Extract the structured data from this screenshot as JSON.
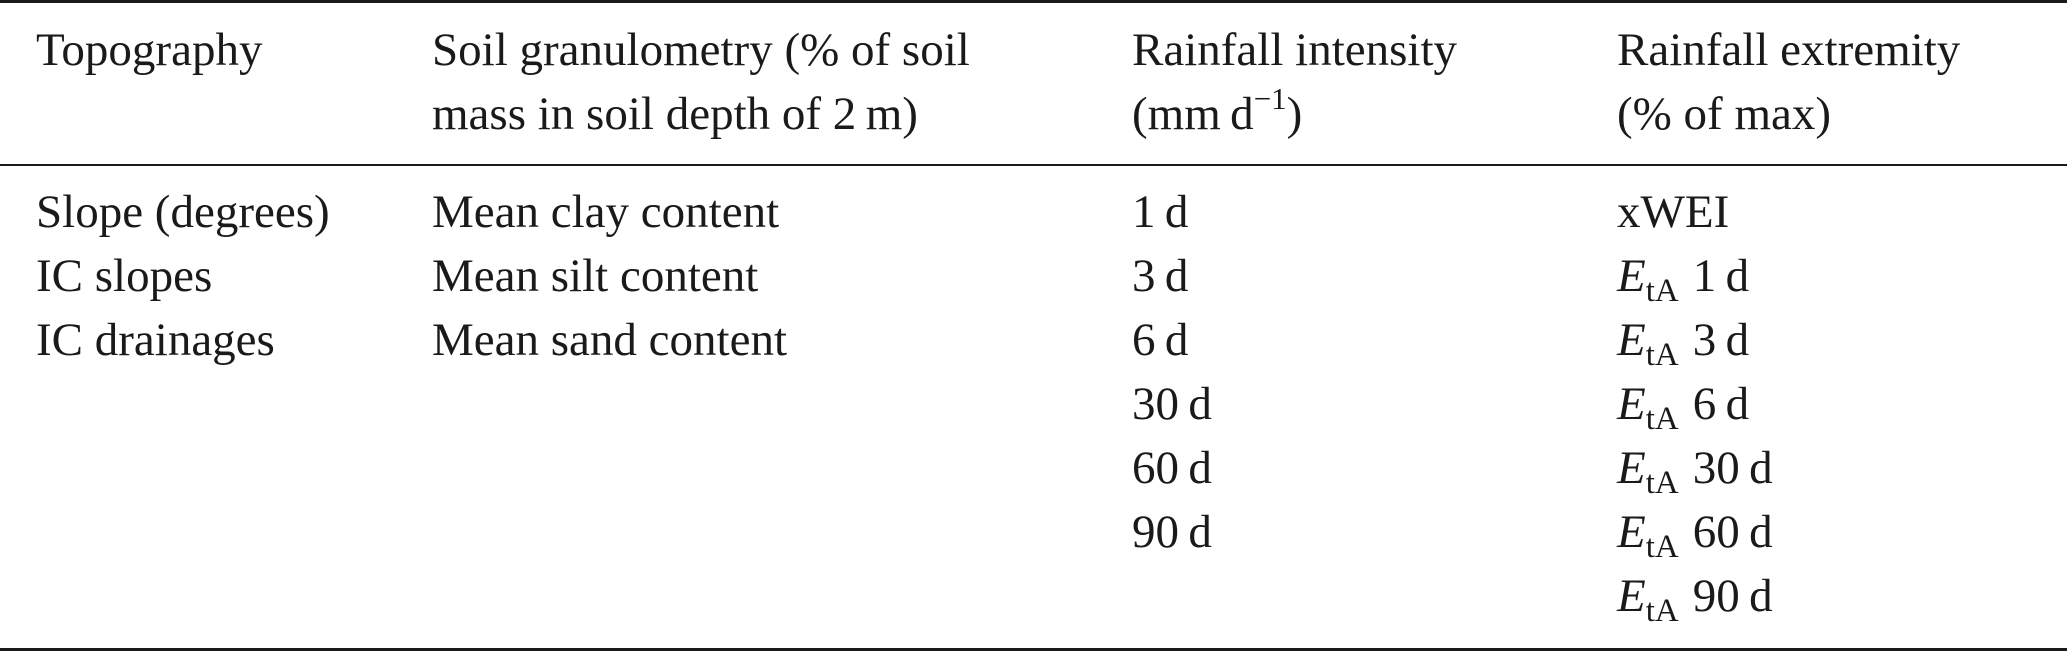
{
  "table": {
    "columns": [
      {
        "header_lines": [
          "Topography"
        ],
        "rows": [
          "Slope (degrees)",
          "IC slopes",
          "IC drainages"
        ]
      },
      {
        "header_lines": [
          "Soil granulometry (% of soil",
          "mass in soil depth of 2 m)"
        ],
        "rows": [
          "Mean clay content",
          "Mean silt content",
          "Mean sand content"
        ]
      },
      {
        "header_line1": "Rainfall intensity",
        "header_line2_pre": "(mm d",
        "header_line2_sup": "−1",
        "header_line2_post": ")",
        "rows": [
          "1 d",
          "3 d",
          "6 d",
          "30 d",
          "60 d",
          "90 d"
        ]
      },
      {
        "header_lines": [
          "Rainfall extremity",
          "(% of max)"
        ],
        "first_row": "xWEI",
        "symbol": "E",
        "symbol_subscript": "tA",
        "rows": [
          "1 d",
          "3 d",
          "6 d",
          "30 d",
          "60 d",
          "90 d"
        ]
      }
    ]
  }
}
